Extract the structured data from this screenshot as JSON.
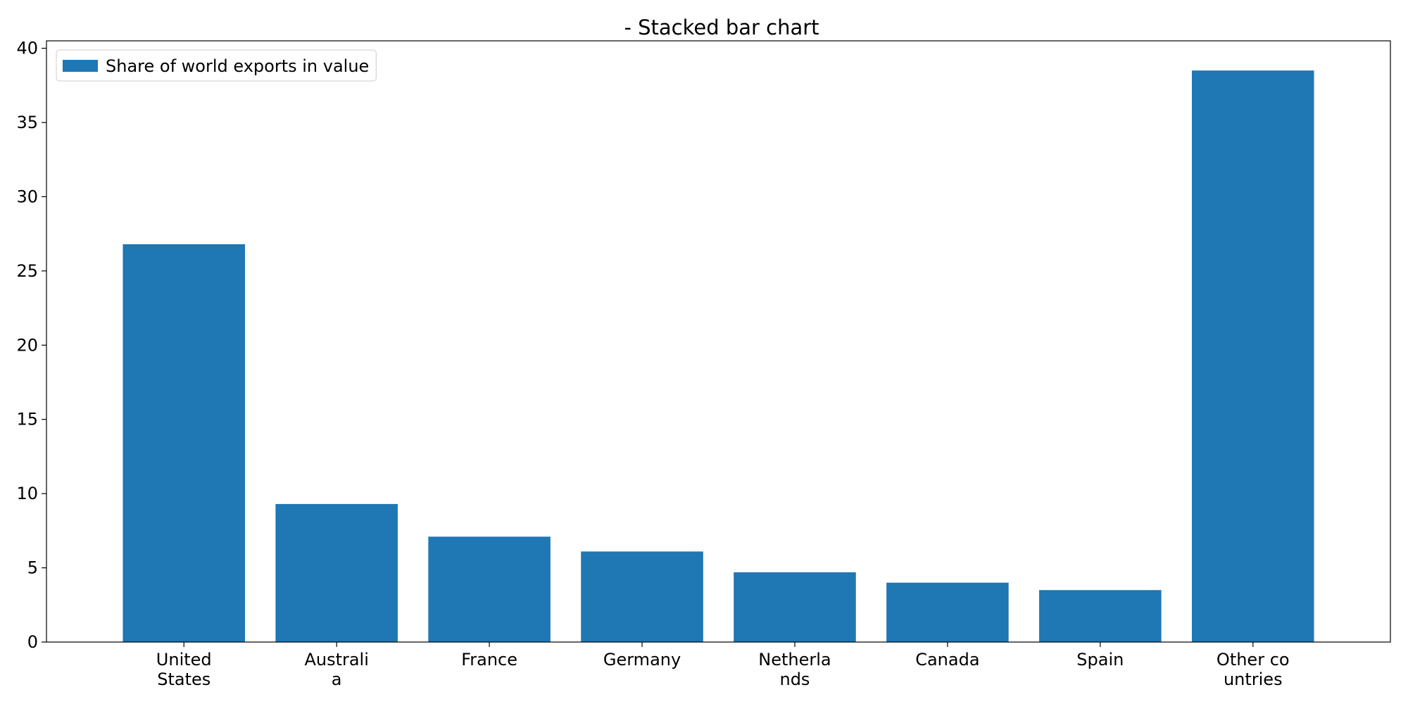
{
  "chart_data": {
    "type": "bar",
    "title": "- Stacked bar chart",
    "xlabel": "",
    "ylabel": "",
    "categories": [
      [
        "United",
        "States"
      ],
      [
        "Australi",
        "a"
      ],
      [
        "France"
      ],
      [
        "Germany"
      ],
      [
        "Netherla",
        "nds"
      ],
      [
        "Canada"
      ],
      [
        "Spain"
      ],
      [
        "Other co",
        "untries"
      ]
    ],
    "series": [
      {
        "name": "Share of world exports in value",
        "color": "#1f77b4",
        "values": [
          26.8,
          9.3,
          7.1,
          6.1,
          4.7,
          4.0,
          3.5,
          38.5
        ]
      }
    ],
    "ylim": [
      0,
      40.5
    ],
    "yticks": [
      0,
      5,
      10,
      15,
      20,
      25,
      30,
      35,
      40
    ],
    "grid": false,
    "legend_position": "top-left"
  }
}
